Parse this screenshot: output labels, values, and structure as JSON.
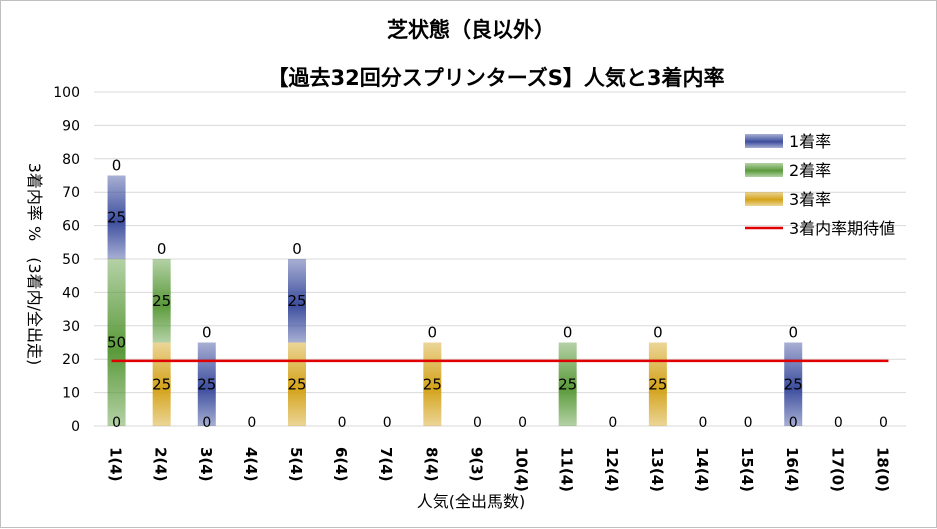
{
  "chart_data": {
    "type": "bar",
    "title": "芝状態（良以外）",
    "subtitle": "【過去32回分スプリンターズS】人気と3着内率",
    "xlabel": "人気(全出馬数)",
    "ylabel": "3着内率 %　(3着内/全出走)",
    "ylim": [
      0,
      100
    ],
    "yticks": [
      0,
      10,
      20,
      30,
      40,
      50,
      60,
      70,
      80,
      90,
      100
    ],
    "categories": [
      "1(4)",
      "2(4)",
      "3(4)",
      "4(4)",
      "5(4)",
      "6(4)",
      "7(4)",
      "8(4)",
      "9(3)",
      "10(4)",
      "11(4)",
      "12(4)",
      "13(4)",
      "14(4)",
      "15(4)",
      "16(4)",
      "17(0)",
      "18(0)"
    ],
    "series": [
      {
        "name": "3着率",
        "color": "#d4a31a",
        "values": [
          0,
          25,
          0,
          0,
          25,
          0,
          0,
          25,
          0,
          0,
          0,
          0,
          25,
          0,
          0,
          0,
          0,
          0
        ]
      },
      {
        "name": "2着率",
        "color": "#5a9a3a",
        "values": [
          50,
          25,
          0,
          0,
          0,
          0,
          0,
          0,
          0,
          0,
          25,
          0,
          0,
          0,
          0,
          0,
          0,
          0
        ]
      },
      {
        "name": "1着率",
        "color": "#3d4e9e",
        "values": [
          25,
          0,
          25,
          0,
          25,
          0,
          0,
          0,
          0,
          0,
          0,
          0,
          0,
          0,
          0,
          25,
          0,
          0
        ]
      }
    ],
    "legend_order": [
      "1着率",
      "2着率",
      "3着率",
      "3着内率期待値"
    ],
    "expected_line": {
      "name": "3着内率期待値",
      "value": 19.5,
      "color": "#e00000"
    },
    "legend_position": "top-right",
    "grid": true
  }
}
